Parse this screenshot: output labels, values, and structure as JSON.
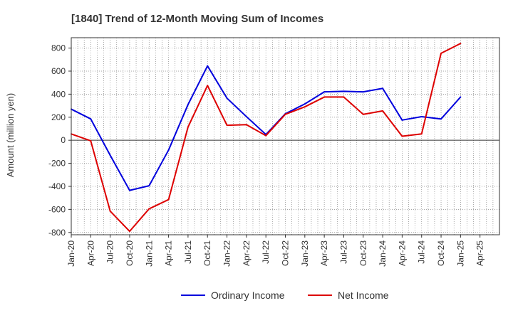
{
  "chart_data": {
    "type": "line",
    "title": "[1840]  Trend of 12-Month Moving Sum of Incomes",
    "xlabel": "",
    "ylabel": "Amount (million yen)",
    "ylim": [
      -820,
      890
    ],
    "yticks": [
      800,
      600,
      400,
      200,
      0,
      -200,
      -400,
      -600,
      -800
    ],
    "grid": true,
    "legend_position": "bottom-center",
    "categories": [
      "Jan-20",
      "Feb-20",
      "Mar-20",
      "Apr-20",
      "May-20",
      "Jun-20",
      "Jul-20",
      "Aug-20",
      "Sep-20",
      "Oct-20",
      "Nov-20",
      "Dec-20",
      "Jan-21",
      "Feb-21",
      "Mar-21",
      "Apr-21",
      "May-21",
      "Jun-21",
      "Jul-21",
      "Aug-21",
      "Sep-21",
      "Oct-21",
      "Nov-21",
      "Dec-21",
      "Jan-22",
      "Feb-22",
      "Mar-22",
      "Apr-22",
      "May-22",
      "Jun-22",
      "Jul-22",
      "Aug-22",
      "Sep-22",
      "Oct-22",
      "Nov-22",
      "Dec-22",
      "Jan-23",
      "Feb-23",
      "Mar-23",
      "Apr-23",
      "May-23",
      "Jun-23",
      "Jul-23",
      "Aug-23",
      "Sep-23",
      "Oct-23",
      "Nov-23",
      "Dec-23",
      "Jan-24",
      "Feb-24",
      "Mar-24",
      "Apr-24",
      "May-24",
      "Jun-24",
      "Jul-24",
      "Aug-24",
      "Sep-24",
      "Oct-24",
      "Nov-24",
      "Dec-24",
      "Jan-25",
      "Feb-25",
      "Mar-25",
      "Apr-25",
      "May-25",
      "Jun-25",
      "Jul-25"
    ],
    "xtick_labels": [
      "Jan-20",
      "Apr-20",
      "Jul-20",
      "Oct-20",
      "Jan-21",
      "Apr-21",
      "Jul-21",
      "Oct-21",
      "Jan-22",
      "Apr-22",
      "Jul-22",
      "Oct-22",
      "Jan-23",
      "Apr-23",
      "Jul-23",
      "Oct-23",
      "Jan-24",
      "Apr-24",
      "Jul-24",
      "Oct-24",
      "Jan-25",
      "Apr-25"
    ],
    "series": [
      {
        "name": "Ordinary Income",
        "color": "#0000dd",
        "x": [
          "Jan-20",
          "Apr-20",
          "Jul-20",
          "Oct-20",
          "Jan-21",
          "Apr-21",
          "Jul-21",
          "Oct-21",
          "Jan-22",
          "Apr-22",
          "Jul-22",
          "Oct-22",
          "Jan-23",
          "Apr-23",
          "Jul-23",
          "Oct-23",
          "Jan-24",
          "Apr-24",
          "Jul-24",
          "Oct-24",
          "Jan-25"
        ],
        "values": [
          270,
          185,
          -130,
          -435,
          -395,
          -85,
          310,
          645,
          365,
          205,
          50,
          230,
          315,
          420,
          425,
          420,
          450,
          175,
          205,
          185,
          375
        ]
      },
      {
        "name": "Net Income",
        "color": "#dd0000",
        "x": [
          "Jan-20",
          "Apr-20",
          "Jul-20",
          "Oct-20",
          "Jan-21",
          "Apr-21",
          "Jul-21",
          "Oct-21",
          "Jan-22",
          "Apr-22",
          "Jul-22",
          "Oct-22",
          "Jan-23",
          "Apr-23",
          "Jul-23",
          "Oct-23",
          "Jan-24",
          "Apr-24",
          "Jul-24",
          "Oct-24",
          "Jan-25"
        ],
        "values": [
          55,
          -5,
          -615,
          -790,
          -595,
          -515,
          115,
          475,
          130,
          135,
          40,
          225,
          290,
          375,
          375,
          225,
          255,
          35,
          55,
          755,
          840
        ]
      }
    ]
  }
}
